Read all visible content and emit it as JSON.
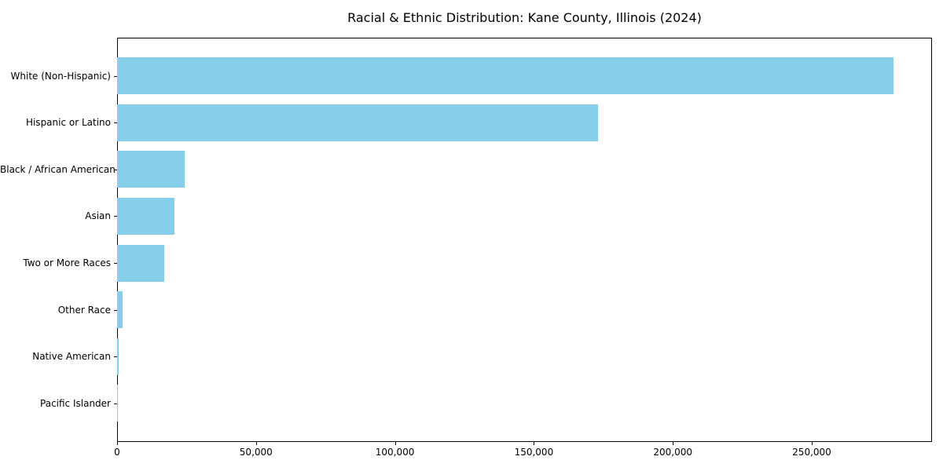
{
  "figure": {
    "title": "Racial & Ethnic Distribution: Kane County, Illinois (2024)"
  },
  "chart_data": {
    "type": "bar",
    "orientation": "horizontal",
    "title": "Racial & Ethnic Distribution: Kane County, Illinois (2024)",
    "categories": [
      "White (Non-Hispanic)",
      "Hispanic or Latino",
      "Black / African American",
      "Asian",
      "Two or More Races",
      "Other Race",
      "Native American",
      "Pacific Islander"
    ],
    "values": [
      279300,
      173000,
      24400,
      20700,
      17000,
      2000,
      500,
      150
    ],
    "xlabel": "",
    "ylabel": "",
    "xlim": [
      0,
      293270
    ],
    "x_ticks": [
      0,
      50000,
      100000,
      150000,
      200000,
      250000
    ],
    "x_tick_labels": [
      "0",
      "50,000",
      "100,000",
      "150,000",
      "200,000",
      "250,000"
    ],
    "bar_color": "#87CEEB",
    "spine_color": "#000000",
    "background_color": "#ffffff",
    "grid": false,
    "legend": "none"
  }
}
